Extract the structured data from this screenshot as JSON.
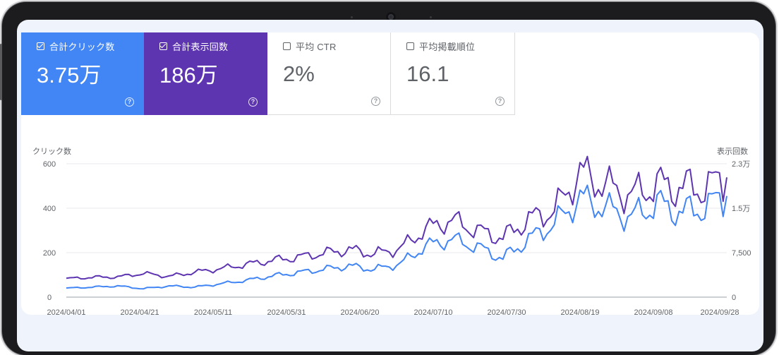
{
  "metrics": {
    "clicks": {
      "label": "合計クリック数",
      "value": "3.75万",
      "checked": true
    },
    "impressions": {
      "label": "合計表示回数",
      "value": "186万",
      "checked": true
    },
    "ctr": {
      "label": "平均 CTR",
      "value": "2%",
      "checked": false
    },
    "position": {
      "label": "平均掲載順位",
      "value": "16.1",
      "checked": false
    },
    "help_glyph": "?"
  },
  "colors": {
    "clicks": "#4285f4",
    "impressions": "#5e35b1",
    "grid": "#e8eaed",
    "axis_text": "#5f6368"
  },
  "chart_data": {
    "type": "line",
    "left_axis_label": "クリック数",
    "right_axis_label": "表示回数",
    "left_ticks": [
      "0",
      "200",
      "400",
      "600"
    ],
    "left_tick_values": [
      0,
      200,
      400,
      600
    ],
    "right_ticks": [
      "0",
      "7,500",
      "1.5万",
      "2.3万"
    ],
    "right_tick_values": [
      0,
      7500,
      15000,
      22500
    ],
    "ylim_left": [
      0,
      600
    ],
    "ylim_right": [
      0,
      22500
    ],
    "x_ticks": [
      "2024/04/01",
      "2024/04/21",
      "2024/05/11",
      "2024/05/31",
      "2024/06/20",
      "2024/07/10",
      "2024/07/30",
      "2024/08/19",
      "2024/09/08",
      "2024/09/28"
    ],
    "x_range": [
      "2024/04/01",
      "2024/09/28"
    ],
    "grid": true,
    "series": [
      {
        "name": "クリック数",
        "axis": "left",
        "points": [
          [
            "2024/04/01",
            40
          ],
          [
            "2024/04/08",
            45
          ],
          [
            "2024/04/15",
            50
          ],
          [
            "2024/04/22",
            38
          ],
          [
            "2024/04/29",
            50
          ],
          [
            "2024/05/06",
            45
          ],
          [
            "2024/05/13",
            60
          ],
          [
            "2024/05/20",
            75
          ],
          [
            "2024/05/27",
            95
          ],
          [
            "2024/06/03",
            110
          ],
          [
            "2024/06/10",
            125
          ],
          [
            "2024/06/17",
            140
          ],
          [
            "2024/06/24",
            125
          ],
          [
            "2024/07/01",
            150
          ],
          [
            "2024/07/08",
            230
          ],
          [
            "2024/07/15",
            260
          ],
          [
            "2024/07/22",
            225
          ],
          [
            "2024/07/29",
            175
          ],
          [
            "2024/08/05",
            260
          ],
          [
            "2024/08/12",
            330
          ],
          [
            "2024/08/19",
            445
          ],
          [
            "2024/08/26",
            400
          ],
          [
            "2024/09/02",
            360
          ],
          [
            "2024/09/09",
            420
          ],
          [
            "2024/09/16",
            380
          ],
          [
            "2024/09/23",
            410
          ],
          [
            "2024/09/28",
            455
          ]
        ]
      },
      {
        "name": "表示回数",
        "axis": "right",
        "points": [
          [
            "2024/04/01",
            3100
          ],
          [
            "2024/04/08",
            3350
          ],
          [
            "2024/04/15",
            3400
          ],
          [
            "2024/04/22",
            4000
          ],
          [
            "2024/04/29",
            3500
          ],
          [
            "2024/05/06",
            4200
          ],
          [
            "2024/05/13",
            4800
          ],
          [
            "2024/05/20",
            5500
          ],
          [
            "2024/05/27",
            6200
          ],
          [
            "2024/06/03",
            6700
          ],
          [
            "2024/06/10",
            7400
          ],
          [
            "2024/06/17",
            8000
          ],
          [
            "2024/06/24",
            7300
          ],
          [
            "2024/07/01",
            8200
          ],
          [
            "2024/07/08",
            11500
          ],
          [
            "2024/07/15",
            13000
          ],
          [
            "2024/07/22",
            11200
          ],
          [
            "2024/07/29",
            10000
          ],
          [
            "2024/08/05",
            13100
          ],
          [
            "2024/08/12",
            14600
          ],
          [
            "2024/08/19",
            21000
          ],
          [
            "2024/08/26",
            18800
          ],
          [
            "2024/09/02",
            17200
          ],
          [
            "2024/09/09",
            19000
          ],
          [
            "2024/09/16",
            18400
          ],
          [
            "2024/09/23",
            18600
          ],
          [
            "2024/09/28",
            20200
          ]
        ]
      }
    ]
  }
}
